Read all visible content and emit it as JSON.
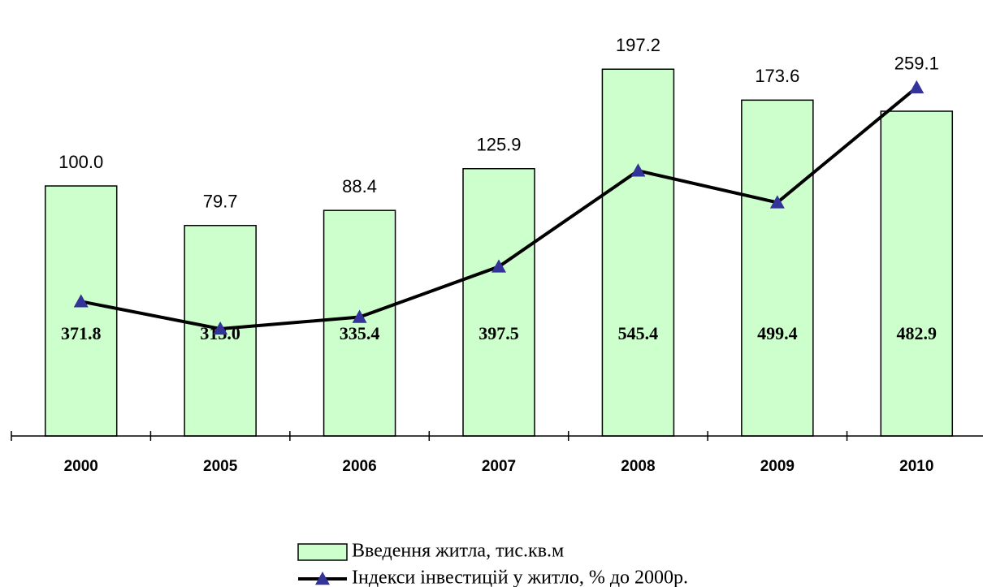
{
  "chart_data": {
    "type": "bar-line",
    "categories": [
      "2000",
      "2005",
      "2006",
      "2007",
      "2008",
      "2009",
      "2010"
    ],
    "series": [
      {
        "name": "Введення житла, тис.кв.м",
        "type": "bar",
        "color": "#ccffcc",
        "values": [
          371.8,
          313.0,
          335.4,
          397.5,
          545.4,
          499.4,
          482.9
        ],
        "value_labels": [
          "371.8",
          "313.0",
          "335.4",
          "397.5",
          "545.4",
          "499.4",
          "482.9"
        ]
      },
      {
        "name": "Індекси інвестицій у житло, % до 2000р.",
        "type": "line",
        "axis": "y2",
        "color": "#000000",
        "marker_color": "#333399",
        "values": [
          100.0,
          79.7,
          88.4,
          125.9,
          197.2,
          173.6,
          259.1
        ],
        "value_labels": [
          "100.0",
          "79.7",
          "88.4",
          "125.9",
          "197.2",
          "173.6",
          "259.1"
        ]
      }
    ],
    "ylim": [
      0,
      600
    ],
    "y2lim": [
      0,
      300
    ],
    "legend": "bottom"
  }
}
